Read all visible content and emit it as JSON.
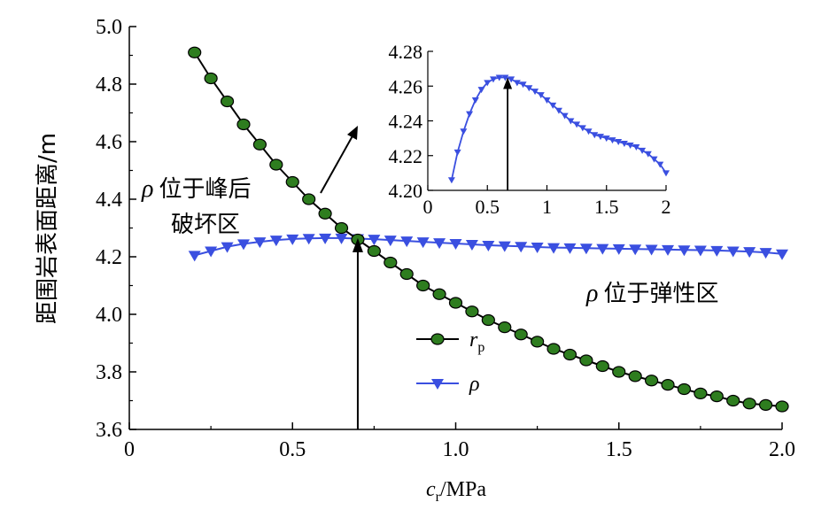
{
  "chart_data": {
    "type": "line",
    "xlabel": "c",
    "xlabel_sub": "r",
    "xlabel_unit": "/MPa",
    "ylabel": "距围岩表面距离/m",
    "xlim": [
      0,
      2.0
    ],
    "ylim": [
      3.6,
      5.0
    ],
    "xticks": [
      "0",
      "0.5",
      "1.0",
      "1.5",
      "2.0"
    ],
    "yticks": [
      "3.6",
      "3.8",
      "4.0",
      "4.2",
      "4.4",
      "4.6",
      "4.8",
      "5.0"
    ],
    "grid": false,
    "legend_position": "lower-center",
    "legend": [
      {
        "label": "r",
        "sub": "p"
      },
      {
        "label": "ρ",
        "sub": ""
      }
    ],
    "x": [
      0.2,
      0.25,
      0.3,
      0.35,
      0.4,
      0.45,
      0.5,
      0.55,
      0.6,
      0.65,
      0.7,
      0.75,
      0.8,
      0.85,
      0.9,
      0.95,
      1.0,
      1.05,
      1.1,
      1.15,
      1.2,
      1.25,
      1.3,
      1.35,
      1.4,
      1.45,
      1.5,
      1.55,
      1.6,
      1.65,
      1.7,
      1.75,
      1.8,
      1.85,
      1.9,
      1.95,
      2.0
    ],
    "series": [
      {
        "name": "rp",
        "color": "#000000",
        "marker_color": "#2e7d1f",
        "marker": "circle",
        "values": [
          4.91,
          4.82,
          4.74,
          4.66,
          4.59,
          4.52,
          4.46,
          4.4,
          4.35,
          4.3,
          4.26,
          4.22,
          4.18,
          4.14,
          4.1,
          4.07,
          4.04,
          4.01,
          3.98,
          3.955,
          3.93,
          3.905,
          3.88,
          3.86,
          3.84,
          3.82,
          3.8,
          3.785,
          3.77,
          3.755,
          3.74,
          3.725,
          3.715,
          3.7,
          3.69,
          3.685,
          3.68
        ]
      },
      {
        "name": "ρ",
        "color": "#3a4fe0",
        "marker_color": "#3a4fe0",
        "marker": "triangle-down",
        "values": [
          4.205,
          4.22,
          4.235,
          4.245,
          4.252,
          4.258,
          4.262,
          4.264,
          4.265,
          4.265,
          4.263,
          4.261,
          4.258,
          4.255,
          4.252,
          4.249,
          4.246,
          4.243,
          4.24,
          4.238,
          4.236,
          4.234,
          4.232,
          4.231,
          4.23,
          4.229,
          4.228,
          4.227,
          4.226,
          4.225,
          4.224,
          4.223,
          4.222,
          4.22,
          4.218,
          4.215,
          4.21
        ]
      }
    ],
    "vline_x": 0.7,
    "inset": {
      "xlim": [
        0,
        2.0
      ],
      "ylim": [
        4.2,
        4.28
      ],
      "xticks": [
        "0",
        "0.5",
        "1",
        "1.5",
        "2"
      ],
      "yticks": [
        "4.20",
        "4.22",
        "4.24",
        "4.26",
        "4.28"
      ],
      "series": "ρ",
      "x": [
        0.2,
        0.25,
        0.3,
        0.35,
        0.4,
        0.45,
        0.5,
        0.55,
        0.6,
        0.65,
        0.7,
        0.75,
        0.8,
        0.85,
        0.9,
        0.95,
        1.0,
        1.05,
        1.1,
        1.15,
        1.2,
        1.25,
        1.3,
        1.35,
        1.4,
        1.45,
        1.5,
        1.55,
        1.6,
        1.65,
        1.7,
        1.75,
        1.8,
        1.85,
        1.9,
        1.95,
        2.0
      ],
      "values": [
        4.206,
        4.222,
        4.234,
        4.244,
        4.252,
        4.258,
        4.262,
        4.264,
        4.265,
        4.265,
        4.264,
        4.262,
        4.261,
        4.259,
        4.257,
        4.255,
        4.252,
        4.249,
        4.246,
        4.243,
        4.24,
        4.238,
        4.236,
        4.234,
        4.232,
        4.231,
        4.23,
        4.229,
        4.228,
        4.227,
        4.226,
        4.225,
        4.223,
        4.221,
        4.218,
        4.215,
        4.21
      ],
      "vline_x": 0.67
    },
    "annotations": [
      {
        "rho": "ρ",
        "text": "位于峰后",
        "text2": "破坏区"
      },
      {
        "rho": "ρ",
        "text": "位于弹性区"
      }
    ]
  }
}
